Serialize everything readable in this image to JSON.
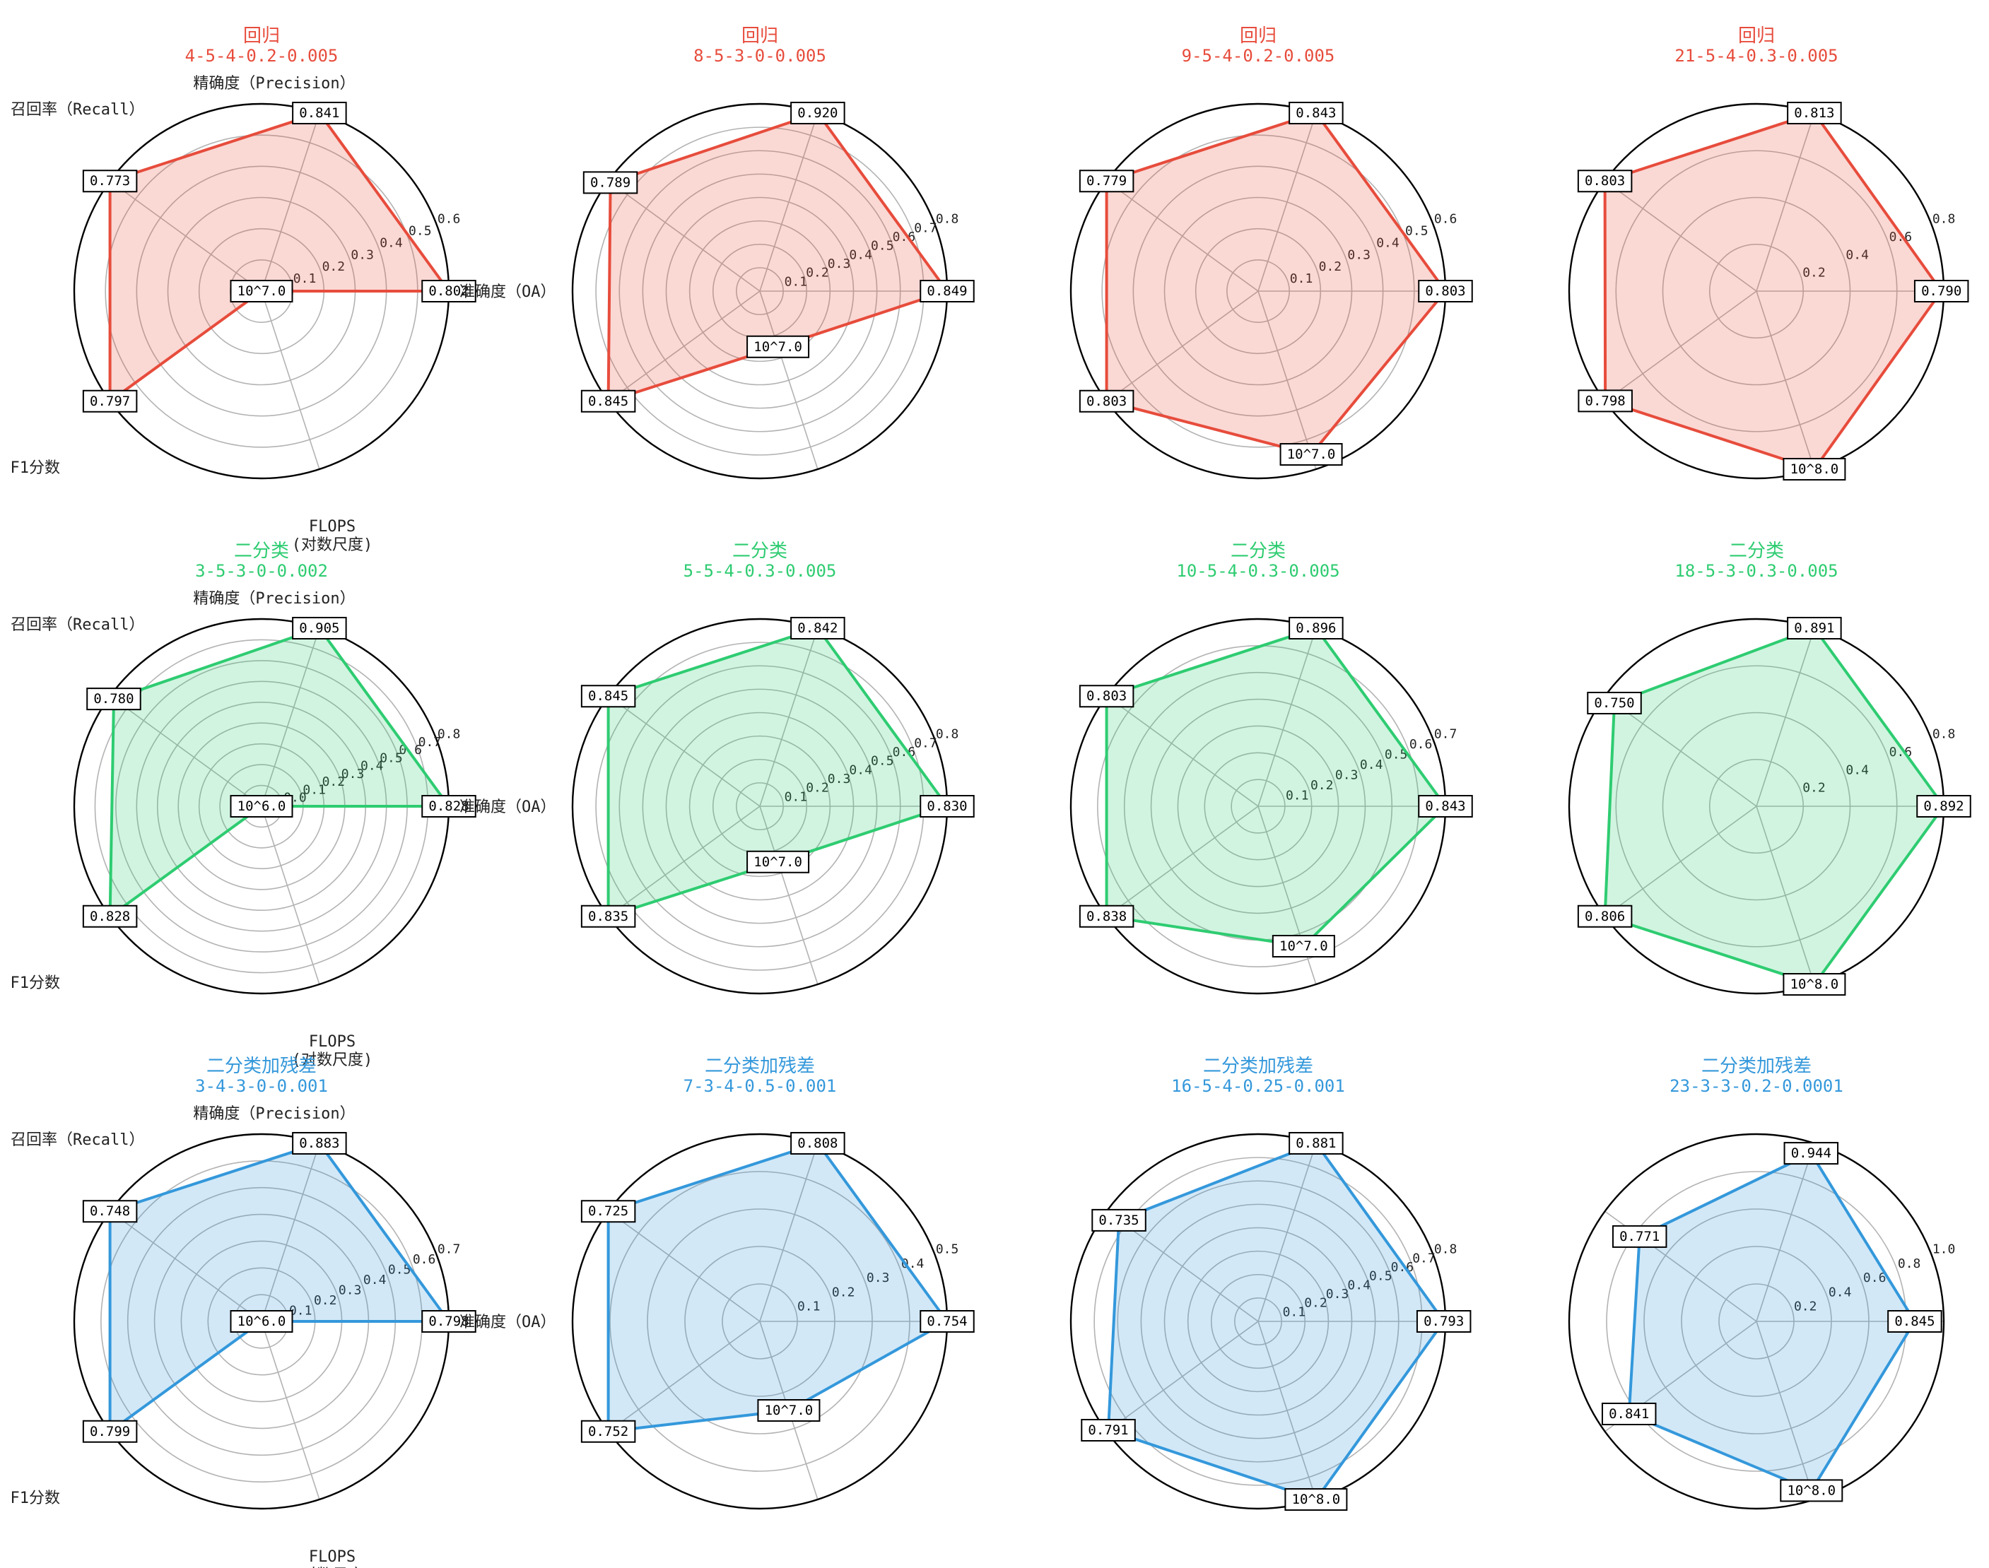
{
  "chart_data": [
    {
      "type": "radar",
      "title": "回归",
      "subtitle": "4-5-4-0.2-0.005",
      "color": "#e74c3c",
      "axes": [
        "准确度（OA）",
        "精确度（Precision）",
        "召回率（Recall）",
        "F1分数",
        "FLOPS\n(对数尺度)"
      ],
      "values": [
        0.802,
        0.841,
        0.773,
        0.797,
        0.0
      ],
      "value_labels": [
        "0.802",
        "0.841",
        "0.773",
        "0.797",
        "10^7.0"
      ],
      "rticks": [
        "0.1",
        "0.2",
        "0.3",
        "0.4",
        "0.5",
        "0.6"
      ],
      "rmax": 0.6
    },
    {
      "type": "radar",
      "title": "回归",
      "subtitle": "8-5-3-0-0.005",
      "color": "#e74c3c",
      "axes": [
        "",
        "",
        "",
        "",
        ""
      ],
      "values": [
        0.849,
        0.92,
        0.789,
        0.845,
        0.25
      ],
      "value_labels": [
        "0.849",
        "0.920",
        "0.789",
        "0.845",
        "10^7.0"
      ],
      "rticks": [
        "0.1",
        "0.2",
        "0.3",
        "0.4",
        "0.5",
        "0.6",
        "0.7",
        "0.8"
      ],
      "rmax": 0.8
    },
    {
      "type": "radar",
      "title": "回归",
      "subtitle": "9-5-4-0.2-0.005",
      "color": "#e74c3c",
      "axes": [
        "",
        "",
        "",
        "",
        ""
      ],
      "values": [
        0.803,
        0.843,
        0.779,
        0.803,
        0.55
      ],
      "value_labels": [
        "0.803",
        "0.843",
        "0.779",
        "0.803",
        "10^7.0"
      ],
      "rticks": [
        "0.1",
        "0.2",
        "0.3",
        "0.4",
        "0.5",
        "0.6"
      ],
      "rmax": 0.6
    },
    {
      "type": "radar",
      "title": "回归",
      "subtitle": "21-5-4-0.3-0.005",
      "color": "#e74c3c",
      "axes": [
        "",
        "",
        "",
        "",
        ""
      ],
      "values": [
        0.79,
        0.813,
        0.803,
        0.798,
        0.95
      ],
      "value_labels": [
        "0.790",
        "0.813",
        "0.803",
        "0.798",
        "10^8.0"
      ],
      "rticks": [
        "0.2",
        "0.4",
        "0.6",
        "0.8"
      ],
      "rmax": 0.8
    },
    {
      "type": "radar",
      "title": "二分类",
      "subtitle": "3-5-3-0-0.002",
      "color": "#2ecc71",
      "axes": [
        "准确度（OA）",
        "精确度（Precision）",
        "召回率（Recall）",
        "F1分数",
        "FLOPS\n(对数尺度)"
      ],
      "values": [
        0.828,
        0.905,
        0.78,
        0.828,
        0.0
      ],
      "value_labels": [
        "0.828",
        "0.905",
        "0.780",
        "0.828",
        "10^6.0"
      ],
      "rticks": [
        "0.0",
        "0.1",
        "0.2",
        "0.3",
        "0.4",
        "0.5",
        "0.6",
        "0.7",
        "0.8"
      ],
      "rmax": 0.8
    },
    {
      "type": "radar",
      "title": "二分类",
      "subtitle": "5-5-4-0.3-0.005",
      "color": "#2ecc71",
      "axes": [
        "",
        "",
        "",
        "",
        ""
      ],
      "values": [
        0.83,
        0.842,
        0.845,
        0.835,
        0.25
      ],
      "value_labels": [
        "0.830",
        "0.842",
        "0.845",
        "0.835",
        "10^7.0"
      ],
      "rticks": [
        "0.1",
        "0.2",
        "0.3",
        "0.4",
        "0.5",
        "0.6",
        "0.7",
        "0.8"
      ],
      "rmax": 0.8
    },
    {
      "type": "radar",
      "title": "二分类",
      "subtitle": "10-5-4-0.3-0.005",
      "color": "#2ecc71",
      "axes": [
        "",
        "",
        "",
        "",
        ""
      ],
      "values": [
        0.843,
        0.896,
        0.803,
        0.838,
        0.55
      ],
      "value_labels": [
        "0.843",
        "0.896",
        "0.803",
        "0.838",
        "10^7.0"
      ],
      "rticks": [
        "0.1",
        "0.2",
        "0.3",
        "0.4",
        "0.5",
        "0.6",
        "0.7"
      ],
      "rmax": 0.7
    },
    {
      "type": "radar",
      "title": "二分类",
      "subtitle": "18-5-3-0.3-0.005",
      "color": "#2ecc71",
      "axes": [
        "",
        "",
        "",
        "",
        ""
      ],
      "values": [
        0.892,
        0.891,
        0.75,
        0.806,
        0.95
      ],
      "value_labels": [
        "0.892",
        "0.891",
        "0.750",
        "0.806",
        "10^8.0"
      ],
      "rticks": [
        "0.2",
        "0.4",
        "0.6",
        "0.8"
      ],
      "rmax": 0.8
    },
    {
      "type": "radar",
      "title": "二分类加残差",
      "subtitle": "3-4-3-0-0.001",
      "color": "#3498db",
      "axes": [
        "准确度（OA）",
        "精确度（Precision）",
        "召回率（Recall）",
        "F1分数",
        "FLOPS\n(对数尺度)"
      ],
      "values": [
        0.798,
        0.883,
        0.748,
        0.799,
        0.0
      ],
      "value_labels": [
        "0.798",
        "0.883",
        "0.748",
        "0.799",
        "10^6.0"
      ],
      "rticks": [
        "0.1",
        "0.2",
        "0.3",
        "0.4",
        "0.5",
        "0.6",
        "0.7"
      ],
      "rmax": 0.7
    },
    {
      "type": "radar",
      "title": "二分类加残差",
      "subtitle": "7-3-4-0.5-0.001",
      "color": "#3498db",
      "axes": [
        "",
        "",
        "",
        "",
        ""
      ],
      "values": [
        0.754,
        0.808,
        0.725,
        0.752,
        0.25
      ],
      "value_labels": [
        "0.754",
        "0.808",
        "0.725",
        "0.752",
        "10^7.0"
      ],
      "rticks": [
        "0.1",
        "0.2",
        "0.3",
        "0.4",
        "0.5"
      ],
      "rmax": 0.5
    },
    {
      "type": "radar",
      "title": "二分类加残差",
      "subtitle": "16-5-4-0.25-0.001",
      "color": "#3498db",
      "axes": [
        "",
        "",
        "",
        "",
        ""
      ],
      "values": [
        0.793,
        0.881,
        0.735,
        0.791,
        0.95
      ],
      "value_labels": [
        "0.793",
        "0.881",
        "0.735",
        "0.791",
        "10^8.0"
      ],
      "rticks": [
        "0.1",
        "0.2",
        "0.3",
        "0.4",
        "0.5",
        "0.6",
        "0.7",
        "0.8"
      ],
      "rmax": 0.8
    },
    {
      "type": "radar",
      "title": "二分类加残差",
      "subtitle": "23-3-3-0.2-0.0001",
      "color": "#3498db",
      "axes": [
        "",
        "",
        "",
        "",
        ""
      ],
      "values": [
        0.845,
        0.944,
        0.771,
        0.841,
        0.95
      ],
      "value_labels": [
        "0.845",
        "0.944",
        "0.771",
        "0.841",
        "10^8.0"
      ],
      "rticks": [
        "0.2",
        "0.4",
        "0.6",
        "0.8",
        "1.0"
      ],
      "rmax": 1.0
    }
  ]
}
